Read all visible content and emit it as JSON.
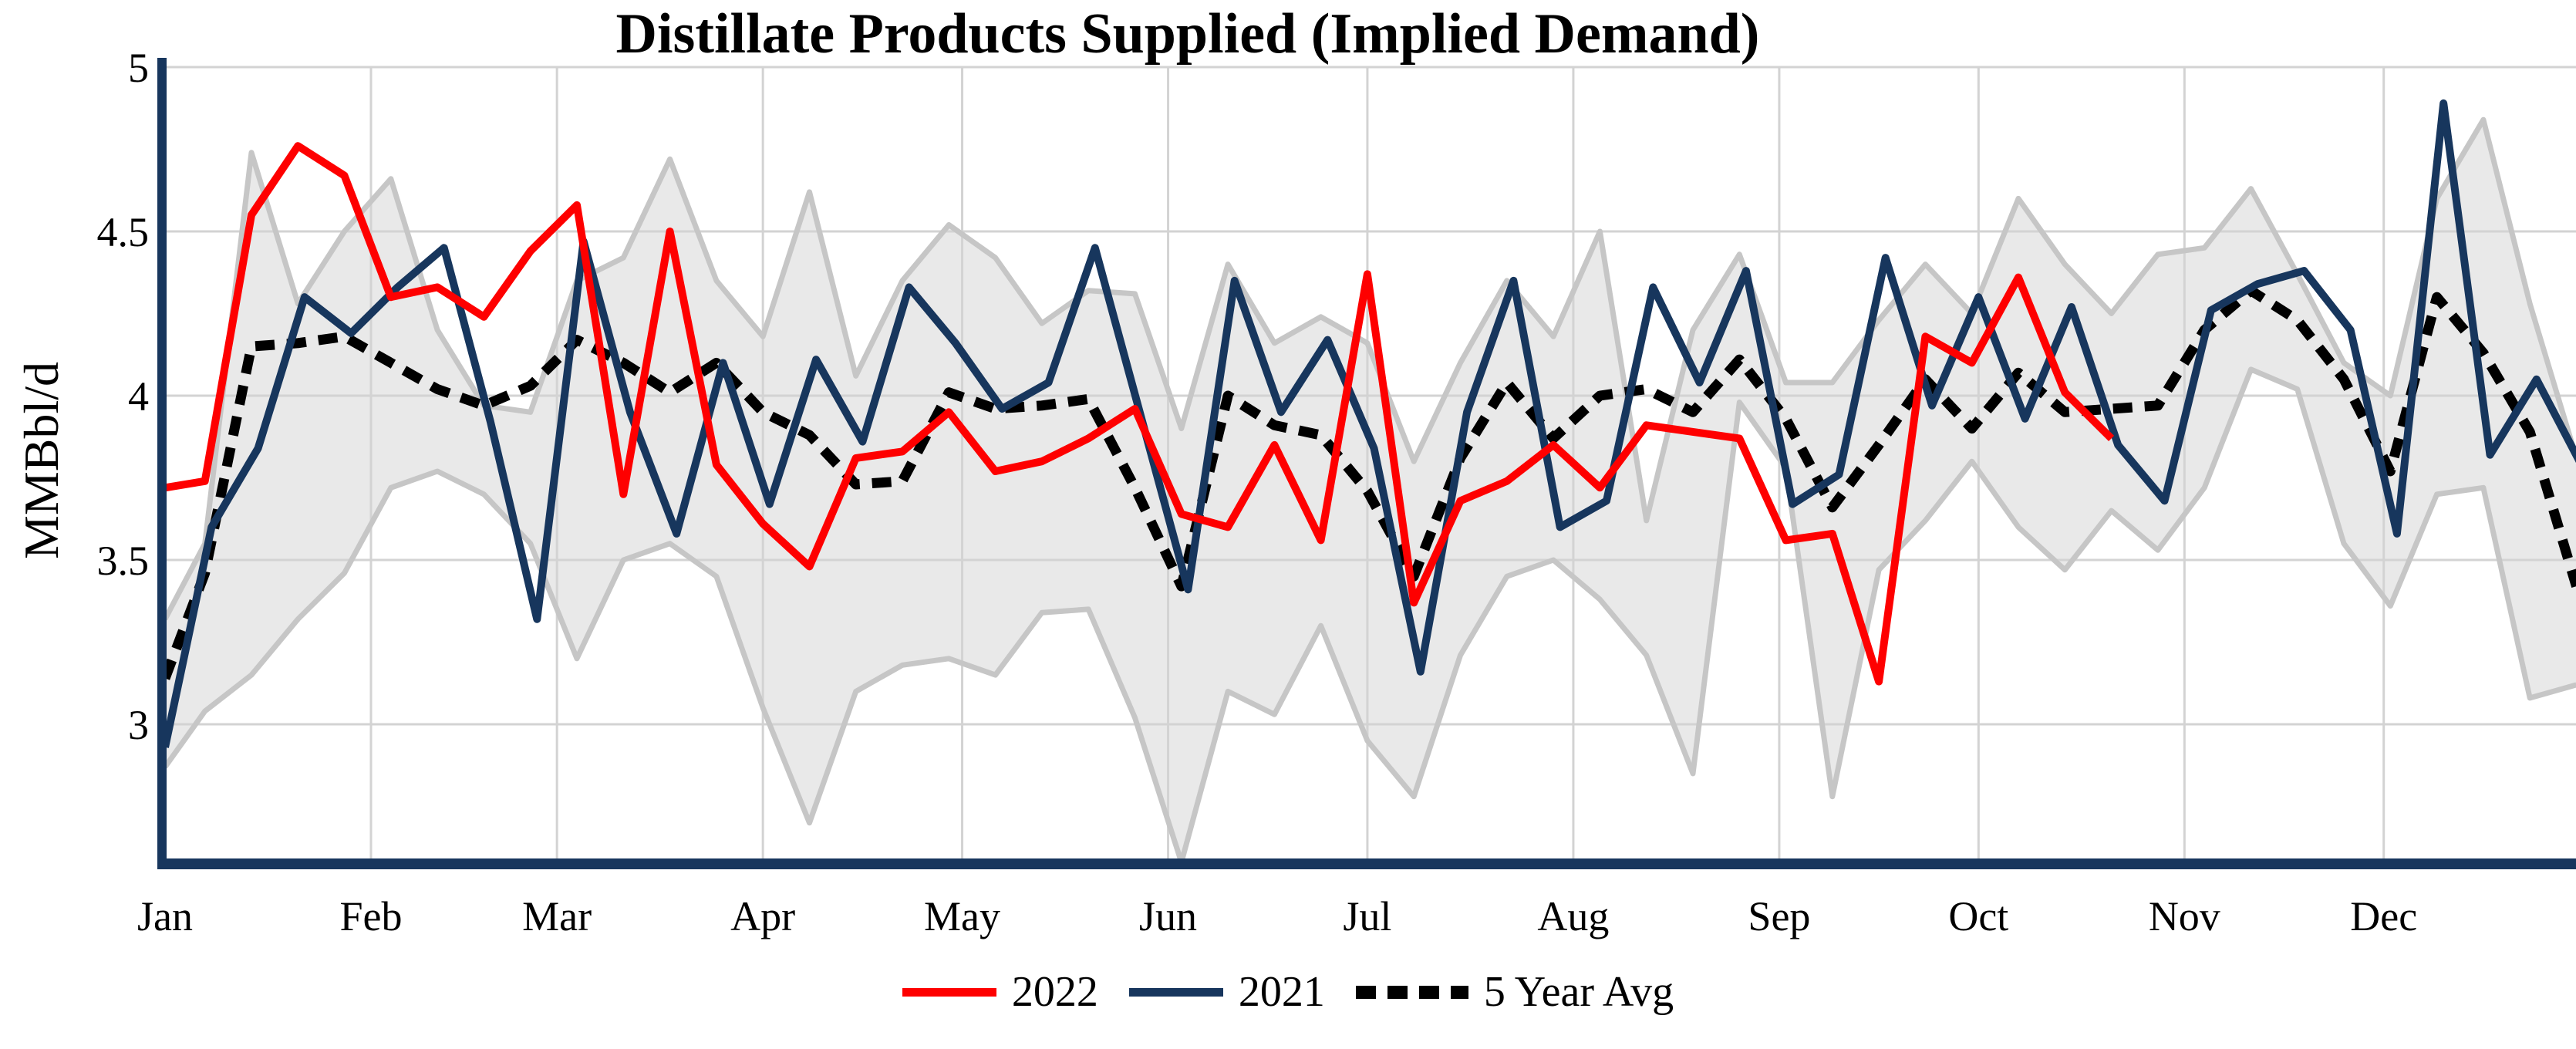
{
  "title": "Distillate Products Supplied (Implied Demand)",
  "y_axis": {
    "label": "MMBbl/d",
    "tick_labels": [
      "5",
      "4.5",
      "4",
      "3.5",
      "3"
    ],
    "tick_values": [
      5,
      4.5,
      4,
      3.5,
      3
    ]
  },
  "x_axis": {
    "month_labels": [
      "Jan",
      "Feb",
      "Mar",
      "Apr",
      "May",
      "Jun",
      "Jul",
      "Aug",
      "Sep",
      "Oct",
      "Nov",
      "Dec"
    ],
    "month_start_days": [
      1,
      32,
      60,
      91,
      121,
      152,
      182,
      213,
      244,
      274,
      305,
      335
    ]
  },
  "legend": {
    "items": [
      {
        "label": "2022",
        "color": "#FE0000",
        "style": "solid"
      },
      {
        "label": "2021",
        "color": "#17365D",
        "style": "solid"
      },
      {
        "label": "5 Year Avg",
        "color": "#000000",
        "style": "dotted"
      }
    ]
  },
  "styles": {
    "grid_color": "#D3D3D3",
    "band_fill": "#E9E9E9",
    "band_edge": "#C6C6C6",
    "axis_color": "#17365D",
    "background": "#FFFFFF"
  },
  "chart_data": {
    "type": "line",
    "title": "Distillate Products Supplied (Implied Demand)",
    "ylabel": "MMBbl/d",
    "x_unit": "day_of_year_weekly",
    "ylim": [
      2.57,
      5.0
    ],
    "grid": true,
    "legend_position": "bottom-center",
    "band": {
      "name": "5-year range",
      "days": [
        1,
        7,
        14,
        21,
        28,
        35,
        42,
        49,
        56,
        63,
        70,
        77,
        84,
        91,
        98,
        105,
        112,
        119,
        126,
        133,
        140,
        147,
        154,
        161,
        168,
        175,
        182,
        189,
        196,
        203,
        210,
        217,
        224,
        231,
        238,
        245,
        252,
        259,
        266,
        273,
        280,
        287,
        294,
        301,
        308,
        315,
        322,
        329,
        336,
        343,
        350,
        357,
        364
      ],
      "upper": [
        3.32,
        3.55,
        4.74,
        4.28,
        4.5,
        4.66,
        4.2,
        3.97,
        3.95,
        4.35,
        4.42,
        4.72,
        4.35,
        4.18,
        4.62,
        4.06,
        4.35,
        4.52,
        4.42,
        4.22,
        4.32,
        4.31,
        3.9,
        4.4,
        4.16,
        4.24,
        4.16,
        3.8,
        4.1,
        4.35,
        4.18,
        4.5,
        3.62,
        4.2,
        4.43,
        4.04,
        4.04,
        4.23,
        4.4,
        4.25,
        4.6,
        4.4,
        4.25,
        4.43,
        4.45,
        4.63,
        4.37,
        4.1,
        4.0,
        4.6,
        4.84,
        4.28,
        3.81
      ],
      "lower": [
        2.87,
        3.04,
        3.15,
        3.32,
        3.46,
        3.72,
        3.77,
        3.7,
        3.55,
        3.2,
        3.5,
        3.55,
        3.45,
        3.05,
        2.7,
        3.1,
        3.18,
        3.2,
        3.15,
        3.34,
        3.35,
        3.02,
        2.58,
        3.1,
        3.03,
        3.3,
        2.95,
        2.78,
        3.21,
        3.45,
        3.5,
        3.38,
        3.21,
        2.85,
        3.98,
        3.78,
        2.78,
        3.47,
        3.62,
        3.8,
        3.6,
        3.47,
        3.65,
        3.53,
        3.72,
        4.08,
        4.02,
        3.55,
        3.36,
        3.7,
        3.72,
        3.08,
        3.12
      ]
    },
    "series": [
      {
        "name": "2022",
        "color": "#FE0000",
        "width": 10,
        "dash": null,
        "days": [
          1,
          7,
          14,
          21,
          28,
          35,
          42,
          49,
          56,
          63,
          70,
          77,
          84,
          91,
          98,
          105,
          112,
          119,
          126,
          133,
          140,
          147,
          154,
          161,
          168,
          175,
          182,
          189,
          196,
          203,
          210,
          217,
          224,
          231,
          238,
          245,
          252,
          259,
          266,
          273,
          280,
          287,
          294
        ],
        "values": [
          3.72,
          3.74,
          4.55,
          4.76,
          4.67,
          4.3,
          4.33,
          4.24,
          4.44,
          4.58,
          3.7,
          4.5,
          3.79,
          3.61,
          3.48,
          3.81,
          3.83,
          3.95,
          3.77,
          3.8,
          3.87,
          3.96,
          3.64,
          3.6,
          3.85,
          3.56,
          4.37,
          3.37,
          3.68,
          3.74,
          3.85,
          3.72,
          3.91,
          3.89,
          3.87,
          3.56,
          3.58,
          3.13,
          4.18,
          4.1,
          4.36,
          4.01,
          3.87
        ]
      },
      {
        "name": "2021",
        "color": "#17365D",
        "width": 10,
        "dash": null,
        "days": [
          1,
          8,
          15,
          22,
          29,
          36,
          43,
          50,
          57,
          64,
          71,
          78,
          85,
          92,
          99,
          106,
          113,
          120,
          127,
          134,
          141,
          148,
          155,
          162,
          169,
          176,
          183,
          190,
          197,
          204,
          211,
          218,
          225,
          232,
          239,
          246,
          253,
          260,
          267,
          274,
          281,
          288,
          295,
          302,
          309,
          316,
          323,
          330,
          337,
          344,
          351,
          358,
          365
        ],
        "values": [
          2.93,
          3.6,
          3.84,
          4.3,
          4.19,
          4.33,
          4.45,
          3.92,
          3.32,
          4.47,
          3.95,
          3.58,
          4.1,
          3.67,
          4.11,
          3.86,
          4.33,
          4.16,
          3.96,
          4.04,
          4.45,
          3.93,
          3.41,
          4.35,
          3.95,
          4.17,
          3.84,
          3.16,
          3.95,
          4.35,
          3.6,
          3.68,
          4.33,
          4.04,
          4.38,
          3.67,
          3.76,
          4.42,
          3.97,
          4.3,
          3.93,
          4.27,
          3.85,
          3.68,
          4.26,
          4.34,
          4.38,
          4.2,
          3.58,
          4.89,
          3.82,
          4.05,
          3.78
        ]
      },
      {
        "name": "5 Year Avg",
        "color": "#000000",
        "width": 13,
        "dash": [
          25,
          16
        ],
        "days": [
          1,
          7,
          14,
          21,
          28,
          35,
          42,
          49,
          56,
          63,
          70,
          77,
          84,
          91,
          98,
          105,
          112,
          119,
          126,
          133,
          140,
          147,
          154,
          161,
          168,
          175,
          182,
          189,
          196,
          203,
          210,
          217,
          224,
          231,
          238,
          245,
          252,
          259,
          266,
          273,
          280,
          287,
          294,
          301,
          308,
          315,
          322,
          329,
          336,
          343,
          350,
          357,
          364
        ],
        "values": [
          3.14,
          3.46,
          4.15,
          4.16,
          4.18,
          4.1,
          4.02,
          3.97,
          4.03,
          4.17,
          4.1,
          4.01,
          4.1,
          3.95,
          3.88,
          3.73,
          3.74,
          4.01,
          3.96,
          3.97,
          3.99,
          3.72,
          3.42,
          4.0,
          3.91,
          3.88,
          3.71,
          3.45,
          3.81,
          4.04,
          3.87,
          4.0,
          4.02,
          3.95,
          4.11,
          3.93,
          3.66,
          3.85,
          4.05,
          3.9,
          4.07,
          3.95,
          3.96,
          3.97,
          4.2,
          4.32,
          4.23,
          4.05,
          3.77,
          4.3,
          4.13,
          3.89,
          3.42
        ]
      }
    ]
  }
}
